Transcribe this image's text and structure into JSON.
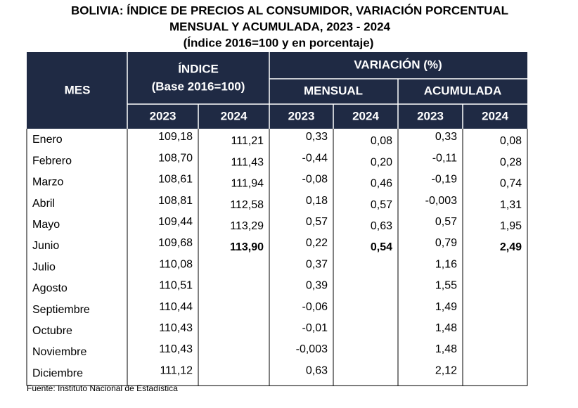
{
  "title": [
    "BOLIVIA: ÍNDICE DE PRECIOS AL CONSUMIDOR, VARIACIÓN PORCENTUAL",
    "MENSUAL Y ACUMULADA, 2023 - 2024",
    "(Índice 2016=100 y en porcentaje)"
  ],
  "header": {
    "mes": "MES",
    "indice": "ÍNDICE",
    "indice_base": "(Base 2016=100)",
    "variacion": "VARIACIÓN (%)",
    "mensual": "MENSUAL",
    "acumulada": "ACUMULADA",
    "years": [
      "2023",
      "2024",
      "2023",
      "2024",
      "2023",
      "2024"
    ]
  },
  "table": {
    "rows": [
      [
        "Enero",
        "109,18",
        "111,21",
        "0,33",
        "0,08",
        "0,33",
        "0,08"
      ],
      [
        "Febrero",
        "108,70",
        "111,43",
        "-0,44",
        "0,20",
        "-0,11",
        "0,28"
      ],
      [
        "Marzo",
        "108,61",
        "111,94",
        "-0,08",
        "0,46",
        "-0,19",
        "0,74"
      ],
      [
        "Abril",
        "108,81",
        "112,58",
        "0,18",
        "0,57",
        "-0,003",
        "1,31"
      ],
      [
        "Mayo",
        "109,44",
        "113,29",
        "0,57",
        "0,63",
        "0,57",
        "1,95"
      ],
      [
        "Junio",
        "109,68",
        "113,90",
        "0,22",
        "0,54",
        "0,79",
        "2,49"
      ],
      [
        "Julio",
        "110,08",
        null,
        "0,37",
        null,
        "1,16",
        null
      ],
      [
        "Agosto",
        "110,51",
        null,
        "0,39",
        null,
        "1,55",
        null
      ],
      [
        "Septiembre",
        "110,44",
        null,
        "-0,06",
        null,
        "1,49",
        null
      ],
      [
        "Octubre",
        "110,43",
        null,
        "-0,01",
        null,
        "1,48",
        null
      ],
      [
        "Noviembre",
        "110,43",
        null,
        "-0,003",
        null,
        "1,48",
        null
      ],
      [
        "Diciembre",
        "111,12",
        null,
        "0,63",
        null,
        "2,12",
        null
      ]
    ]
  },
  "source": "Fuente: Instituto Nacional de Estadística"
}
